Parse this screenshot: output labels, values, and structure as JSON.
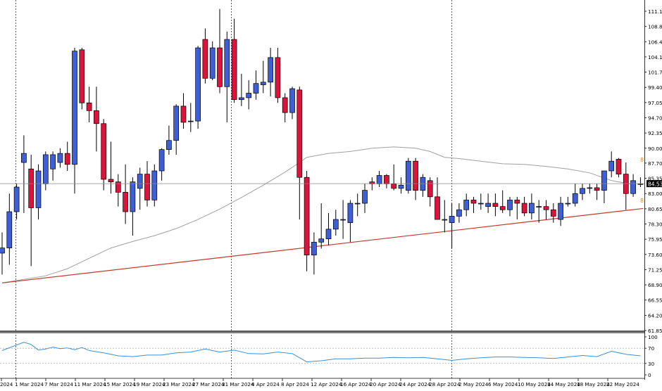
{
  "chart_data": [
    {
      "type": "candlestick",
      "price_axis": {
        "ticks": [
          "111.15",
          "108.80",
          "106.45",
          "104.10",
          "101.75",
          "99.40",
          "97.05",
          "94.70",
          "92.35",
          "90.00",
          "87.70",
          "85.35",
          "83.00",
          "80.65",
          "78.30",
          "75.95",
          "73.60",
          "71.25",
          "68.90",
          "66.55",
          "64.20",
          "61.85"
        ],
        "range": [
          61.85,
          111.15
        ]
      },
      "current_price": "84.53",
      "right_edge_labels": [
        "8",
        "8"
      ],
      "date_labels": [
        "2024",
        "1 Mar 2024",
        "7 Mar 2024",
        "11 Mar 2024",
        "15 Mar 2024",
        "19 Mar 2024",
        "23 Mar 2024",
        "27 Mar 2024",
        "31 Mar 2024",
        "4 Apr 2024",
        "8 Apr 2024",
        "12 Apr 2024",
        "16 Apr 2024",
        "20 Apr 2024",
        "24 Apr 2024",
        "28 Apr 2024",
        "2 May 2024",
        "6 May 2024",
        "10 May 2024",
        "14 May 2024",
        "18 May 2024",
        "22 May 2024"
      ],
      "candles": [
        {
          "o": 73.8,
          "h": 77.0,
          "l": 70.5,
          "c": 74.6
        },
        {
          "o": 74.6,
          "h": 83.0,
          "l": 72.0,
          "c": 80.2
        },
        {
          "o": 80.2,
          "h": 84.5,
          "l": 79.0,
          "c": 84.0
        },
        {
          "o": 87.8,
          "h": 92.0,
          "l": 80.0,
          "c": 89.2
        },
        {
          "o": 86.8,
          "h": 89.0,
          "l": 71.8,
          "c": 80.8
        },
        {
          "o": 80.8,
          "h": 87.5,
          "l": 79.0,
          "c": 86.5
        },
        {
          "o": 84.5,
          "h": 89.5,
          "l": 83.5,
          "c": 89.0
        },
        {
          "o": 86.8,
          "h": 89.5,
          "l": 85.0,
          "c": 89.0
        },
        {
          "o": 87.8,
          "h": 90.0,
          "l": 87.0,
          "c": 89.2
        },
        {
          "o": 89.2,
          "h": 91.0,
          "l": 86.5,
          "c": 87.5
        },
        {
          "o": 87.5,
          "h": 105.5,
          "l": 83.0,
          "c": 105.0
        },
        {
          "o": 105.2,
          "h": 105.5,
          "l": 96.0,
          "c": 97.0
        },
        {
          "o": 97.0,
          "h": 99.5,
          "l": 94.0,
          "c": 95.8
        },
        {
          "o": 95.8,
          "h": 99.5,
          "l": 89.5,
          "c": 93.8
        },
        {
          "o": 93.8,
          "h": 94.5,
          "l": 83.5,
          "c": 85.2
        },
        {
          "o": 85.2,
          "h": 91.0,
          "l": 83.0,
          "c": 84.8
        },
        {
          "o": 84.8,
          "h": 86.0,
          "l": 81.0,
          "c": 83.2
        },
        {
          "o": 83.2,
          "h": 87.5,
          "l": 78.3,
          "c": 80.2
        },
        {
          "o": 80.2,
          "h": 85.5,
          "l": 76.5,
          "c": 84.8
        },
        {
          "o": 83.8,
          "h": 87.0,
          "l": 80.5,
          "c": 86.0
        },
        {
          "o": 86.0,
          "h": 88.0,
          "l": 81.0,
          "c": 82.0
        },
        {
          "o": 82.0,
          "h": 87.5,
          "l": 81.0,
          "c": 86.5
        },
        {
          "o": 86.5,
          "h": 90.0,
          "l": 85.0,
          "c": 89.8
        },
        {
          "o": 89.8,
          "h": 93.5,
          "l": 89.0,
          "c": 91.2
        },
        {
          "o": 91.2,
          "h": 96.8,
          "l": 89.0,
          "c": 96.5
        },
        {
          "o": 96.5,
          "h": 98.5,
          "l": 93.0,
          "c": 94.0
        },
        {
          "o": 94.2,
          "h": 97.0,
          "l": 92.5,
          "c": 94.2
        },
        {
          "o": 94.2,
          "h": 105.8,
          "l": 93.0,
          "c": 105.5
        },
        {
          "o": 106.8,
          "h": 108.5,
          "l": 100.0,
          "c": 100.8
        },
        {
          "o": 100.8,
          "h": 106.5,
          "l": 100.5,
          "c": 105.5
        },
        {
          "o": 105.5,
          "h": 111.5,
          "l": 98.5,
          "c": 99.5
        },
        {
          "o": 99.5,
          "h": 108.0,
          "l": 94.0,
          "c": 106.8
        },
        {
          "o": 106.8,
          "h": 110.0,
          "l": 97.0,
          "c": 97.5
        },
        {
          "o": 97.5,
          "h": 101.5,
          "l": 96.5,
          "c": 97.8
        },
        {
          "o": 97.8,
          "h": 100.5,
          "l": 96.0,
          "c": 98.5
        },
        {
          "o": 98.5,
          "h": 102.0,
          "l": 97.5,
          "c": 100.0
        },
        {
          "o": 99.8,
          "h": 103.5,
          "l": 98.5,
          "c": 100.2
        },
        {
          "o": 100.2,
          "h": 105.5,
          "l": 98.0,
          "c": 104.0
        },
        {
          "o": 104.0,
          "h": 105.5,
          "l": 97.0,
          "c": 97.8
        },
        {
          "o": 97.8,
          "h": 98.5,
          "l": 94.0,
          "c": 95.5
        },
        {
          "o": 95.5,
          "h": 99.5,
          "l": 94.5,
          "c": 99.2
        },
        {
          "o": 99.0,
          "h": 99.5,
          "l": 79.0,
          "c": 85.5
        },
        {
          "o": 85.5,
          "h": 86.5,
          "l": 71.0,
          "c": 73.5
        },
        {
          "o": 73.5,
          "h": 77.0,
          "l": 70.5,
          "c": 75.5
        },
        {
          "o": 75.5,
          "h": 81.5,
          "l": 74.5,
          "c": 76.0
        },
        {
          "o": 76.0,
          "h": 80.0,
          "l": 75.0,
          "c": 77.5
        },
        {
          "o": 77.5,
          "h": 80.5,
          "l": 76.5,
          "c": 79.0
        },
        {
          "o": 79.0,
          "h": 82.0,
          "l": 76.0,
          "c": 79.0
        },
        {
          "o": 78.5,
          "h": 82.0,
          "l": 75.5,
          "c": 81.5
        },
        {
          "o": 81.5,
          "h": 83.0,
          "l": 79.5,
          "c": 81.5
        },
        {
          "o": 81.5,
          "h": 84.5,
          "l": 80.0,
          "c": 83.5
        },
        {
          "o": 84.8,
          "h": 85.5,
          "l": 83.5,
          "c": 84.5
        },
        {
          "o": 84.5,
          "h": 86.5,
          "l": 84.0,
          "c": 85.8
        },
        {
          "o": 85.8,
          "h": 86.0,
          "l": 83.8,
          "c": 84.5
        },
        {
          "o": 84.5,
          "h": 87.5,
          "l": 83.5,
          "c": 83.8
        },
        {
          "o": 83.8,
          "h": 85.5,
          "l": 83.0,
          "c": 84.3
        },
        {
          "o": 83.5,
          "h": 88.5,
          "l": 83.0,
          "c": 88.0
        },
        {
          "o": 88.0,
          "h": 88.5,
          "l": 82.0,
          "c": 83.5
        },
        {
          "o": 83.5,
          "h": 86.0,
          "l": 82.5,
          "c": 85.5
        },
        {
          "o": 85.0,
          "h": 85.5,
          "l": 81.0,
          "c": 82.5
        },
        {
          "o": 82.5,
          "h": 85.5,
          "l": 79.0,
          "c": 79.0
        },
        {
          "o": 79.0,
          "h": 82.0,
          "l": 77.0,
          "c": 79.0
        },
        {
          "o": 78.5,
          "h": 81.5,
          "l": 74.5,
          "c": 79.5
        },
        {
          "o": 79.5,
          "h": 81.5,
          "l": 78.5,
          "c": 80.5
        },
        {
          "o": 80.5,
          "h": 83.0,
          "l": 79.5,
          "c": 82.0
        },
        {
          "o": 82.0,
          "h": 82.5,
          "l": 80.0,
          "c": 81.5
        },
        {
          "o": 81.5,
          "h": 83.0,
          "l": 80.5,
          "c": 81.5
        },
        {
          "o": 81.0,
          "h": 83.0,
          "l": 80.0,
          "c": 81.5
        },
        {
          "o": 81.5,
          "h": 83.0,
          "l": 79.5,
          "c": 81.0
        },
        {
          "o": 81.0,
          "h": 83.5,
          "l": 80.0,
          "c": 80.5
        },
        {
          "o": 80.5,
          "h": 82.5,
          "l": 79.5,
          "c": 82.0
        },
        {
          "o": 82.0,
          "h": 82.5,
          "l": 79.0,
          "c": 81.5
        },
        {
          "o": 81.5,
          "h": 82.5,
          "l": 79.5,
          "c": 80.0
        },
        {
          "o": 80.0,
          "h": 83.0,
          "l": 79.0,
          "c": 81.5
        },
        {
          "o": 81.0,
          "h": 82.0,
          "l": 78.5,
          "c": 81.0
        },
        {
          "o": 81.0,
          "h": 82.0,
          "l": 79.0,
          "c": 80.5
        },
        {
          "o": 80.5,
          "h": 81.5,
          "l": 78.5,
          "c": 79.5
        },
        {
          "o": 79.0,
          "h": 82.5,
          "l": 78.0,
          "c": 81.5
        },
        {
          "o": 81.5,
          "h": 82.5,
          "l": 81.0,
          "c": 81.5
        },
        {
          "o": 81.5,
          "h": 84.5,
          "l": 81.0,
          "c": 83.0
        },
        {
          "o": 83.0,
          "h": 84.5,
          "l": 82.0,
          "c": 83.8
        },
        {
          "o": 83.8,
          "h": 84.5,
          "l": 83.0,
          "c": 83.9
        },
        {
          "o": 83.9,
          "h": 84.5,
          "l": 82.0,
          "c": 83.5
        },
        {
          "o": 83.5,
          "h": 86.5,
          "l": 81.5,
          "c": 86.5
        },
        {
          "o": 86.5,
          "h": 89.5,
          "l": 85.5,
          "c": 88.0
        },
        {
          "o": 88.3,
          "h": 88.5,
          "l": 85.5,
          "c": 86.0
        },
        {
          "o": 86.0,
          "h": 87.8,
          "l": 80.5,
          "c": 83.0
        },
        {
          "o": 83.0,
          "h": 86.0,
          "l": 82.5,
          "c": 85.0
        },
        {
          "o": 84.5,
          "h": 85.5,
          "l": 84.0,
          "c": 84.5
        }
      ],
      "moving_average": {
        "color": "#a0a0a0",
        "points": [
          [
            0,
            69.2
          ],
          [
            6,
            70.3
          ],
          [
            9,
            71.4
          ],
          [
            12,
            73.0
          ],
          [
            15,
            74.6
          ],
          [
            18,
            75.6
          ],
          [
            21,
            76.5
          ],
          [
            24,
            77.6
          ],
          [
            27,
            79.0
          ],
          [
            30,
            80.6
          ],
          [
            33,
            82.4
          ],
          [
            36,
            84.3
          ],
          [
            39,
            86.3
          ],
          [
            41,
            87.8
          ],
          [
            42,
            88.6
          ],
          [
            45,
            89.2
          ],
          [
            48,
            89.5
          ],
          [
            51,
            90.0
          ],
          [
            54,
            90.2
          ],
          [
            57,
            90.0
          ],
          [
            59,
            89.5
          ],
          [
            61,
            88.6
          ],
          [
            63,
            88.4
          ],
          [
            66,
            88.0
          ],
          [
            69,
            87.6
          ],
          [
            72,
            87.5
          ],
          [
            75,
            87.2
          ],
          [
            78,
            86.8
          ],
          [
            81,
            86.2
          ],
          [
            84,
            85.0
          ],
          [
            87,
            84.4
          ]
        ]
      },
      "trendline": {
        "color": "#c0392b",
        "from": [
          0,
          69.2
        ],
        "to": [
          88,
          80.7
        ]
      }
    },
    {
      "type": "line",
      "role": "oscillator",
      "y_ticks": [
        "100",
        "70",
        "30",
        "0"
      ],
      "ylim": [
        0,
        100
      ],
      "guide_levels": [
        70,
        30
      ],
      "color": "#3a8fd6",
      "points": [
        [
          0,
          64
        ],
        [
          3,
          86
        ],
        [
          4,
          80
        ],
        [
          5,
          65
        ],
        [
          6,
          68
        ],
        [
          7,
          73
        ],
        [
          8,
          69
        ],
        [
          9,
          71
        ],
        [
          10,
          66
        ],
        [
          11,
          72
        ],
        [
          12,
          64
        ],
        [
          14,
          58
        ],
        [
          16,
          50
        ],
        [
          18,
          48
        ],
        [
          20,
          52
        ],
        [
          22,
          52
        ],
        [
          24,
          58
        ],
        [
          26,
          60
        ],
        [
          28,
          68
        ],
        [
          30,
          60
        ],
        [
          32,
          65
        ],
        [
          34,
          56
        ],
        [
          36,
          55
        ],
        [
          38,
          60
        ],
        [
          40,
          56
        ],
        [
          42,
          34
        ],
        [
          44,
          37
        ],
        [
          46,
          42
        ],
        [
          48,
          42
        ],
        [
          50,
          44
        ],
        [
          52,
          44
        ],
        [
          54,
          46
        ],
        [
          56,
          45
        ],
        [
          58,
          46
        ],
        [
          60,
          42
        ],
        [
          62,
          38
        ],
        [
          64,
          42
        ],
        [
          66,
          45
        ],
        [
          68,
          47
        ],
        [
          70,
          47
        ],
        [
          72,
          46
        ],
        [
          74,
          45
        ],
        [
          76,
          43
        ],
        [
          78,
          47
        ],
        [
          80,
          51
        ],
        [
          82,
          48
        ],
        [
          84,
          62
        ],
        [
          86,
          54
        ],
        [
          88,
          50
        ]
      ]
    }
  ]
}
